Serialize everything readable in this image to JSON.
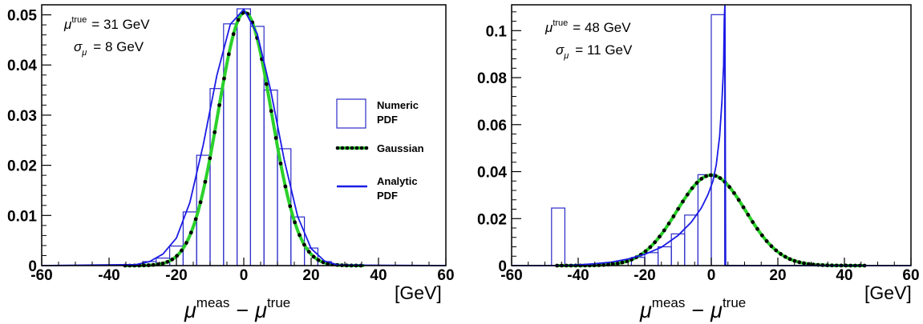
{
  "colors": {
    "histogram": "#2b2bc8",
    "analytic": "#1a1ae6",
    "gaussian_line": "#2bd12b",
    "gaussian_dots": "#000000",
    "axes": "#000000"
  },
  "legend": {
    "numeric_label_1": "Numeric",
    "numeric_label_2": "PDF",
    "gaussian_label": "Gaussian",
    "analytic_label_1": "Analytic",
    "analytic_label_2": "PDF"
  },
  "chart_data": [
    {
      "type": "line",
      "xlabel_main": "μ",
      "xlabel_sup_1": "meas",
      "xlabel_sep": "−",
      "xlabel_sup_2": "true",
      "unit_label": "[GeV]",
      "xlim": [
        -60,
        60
      ],
      "ylim": [
        0,
        0.052
      ],
      "x_ticks": [
        "-60",
        "-40",
        "-20",
        "0",
        "20",
        "40",
        "60"
      ],
      "y_ticks": [
        "0",
        "0.01",
        "0.02",
        "0.03",
        "0.04",
        "0.05"
      ],
      "annotation": {
        "mu_symbol": "μ",
        "mu_sup": "true",
        "mu_value": "= 31 GeV",
        "sigma_symbol": "σ",
        "sigma_sub": "μ",
        "sigma_value": "= 8 GeV"
      },
      "gaussian": {
        "mean": 0.3,
        "sigma": 7.9,
        "amplitude": 0.0505
      },
      "histogram": {
        "bin_edges": [
          -30,
          -26,
          -22,
          -18,
          -14,
          -10,
          -6,
          -2,
          2,
          6,
          10,
          14,
          18,
          22,
          26
        ],
        "values": [
          0.0008,
          0.0015,
          0.0039,
          0.0107,
          0.022,
          0.0353,
          0.0482,
          0.0512,
          0.0477,
          0.035,
          0.0233,
          0.0097,
          0.0035,
          0.0008
        ]
      },
      "analytic": {
        "x": [
          -60,
          -32,
          -28,
          -24,
          -20,
          -16,
          -12,
          -8,
          -4,
          0,
          4,
          8,
          12,
          16,
          20,
          24,
          28,
          60
        ],
        "y": [
          0,
          0.0002,
          0.0008,
          0.0023,
          0.0055,
          0.0126,
          0.0242,
          0.0379,
          0.0481,
          0.0511,
          0.0462,
          0.0349,
          0.0211,
          0.0098,
          0.0034,
          0.0009,
          0.0001,
          0
        ]
      }
    },
    {
      "type": "line",
      "xlabel_main": "μ",
      "xlabel_sup_1": "meas",
      "xlabel_sep": "−",
      "xlabel_sup_2": "true",
      "unit_label": "[GeV]",
      "xlim": [
        -60,
        60
      ],
      "ylim": [
        0,
        0.111
      ],
      "x_ticks": [
        "-60",
        "-40",
        "-20",
        "0",
        "20",
        "40",
        "60"
      ],
      "y_ticks": [
        "0",
        "0.02",
        "0.04",
        "0.06",
        "0.08",
        "0.1"
      ],
      "annotation": {
        "mu_symbol": "μ",
        "mu_sup": "true",
        "mu_value": "= 48 GeV",
        "sigma_symbol": "σ",
        "sigma_sub": "μ",
        "sigma_value": "= 11 GeV"
      },
      "gaussian": {
        "mean": 0,
        "sigma": 10.3,
        "amplitude": 0.0385
      },
      "histogram": {
        "bin_edges": [
          -48,
          -44,
          -40,
          -36,
          -32,
          -28,
          -24,
          -20,
          -16,
          -12,
          -8,
          -4,
          0,
          4
        ],
        "values": [
          0.0245,
          0,
          0,
          0,
          0,
          0,
          0.0035,
          0.0055,
          0.008,
          0.0135,
          0.0215,
          0.0387,
          0.1068
        ]
      },
      "analytic": {
        "x": [
          -60,
          -44,
          -40,
          -35,
          -30,
          -25,
          -20,
          -15,
          -10,
          -6,
          -3,
          -1,
          0.5,
          1.5,
          2.5,
          3.2,
          3.7,
          3.9,
          4.1,
          4.3,
          60
        ],
        "y": [
          0,
          0,
          0.0003,
          0.0008,
          0.0015,
          0.0028,
          0.0048,
          0.0078,
          0.0128,
          0.0185,
          0.0245,
          0.0302,
          0.036,
          0.043,
          0.055,
          0.07,
          0.085,
          0.105,
          0.111,
          0,
          0
        ]
      }
    }
  ]
}
